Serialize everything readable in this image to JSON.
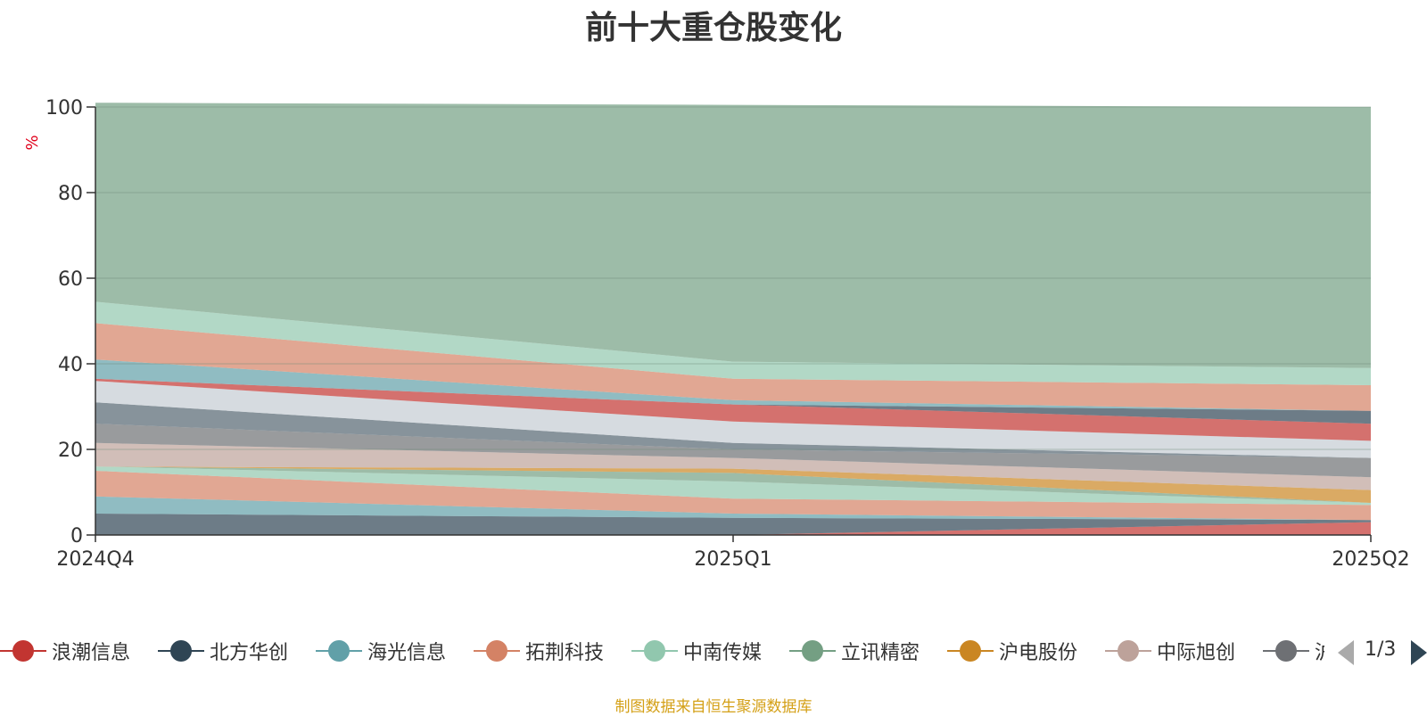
{
  "chart_data": {
    "type": "area",
    "title": "前十大重仓股变化",
    "ylabel": "%",
    "ylim": [
      0,
      100
    ],
    "yticks": [
      0,
      20,
      40,
      60,
      80,
      100
    ],
    "categories": [
      "2024Q4",
      "2025Q1",
      "2025Q2"
    ],
    "stacked": true,
    "grid": true,
    "series": [
      {
        "name": "浪潮信息",
        "color": "#c23531",
        "values": [
          0,
          0,
          3
        ]
      },
      {
        "name": "北方华创",
        "color": "#2f4554",
        "values": [
          5,
          4,
          0.5
        ]
      },
      {
        "name": "海光信息",
        "color": "#61a0a8",
        "values": [
          4,
          1,
          0
        ]
      },
      {
        "name": "拓荆科技",
        "color": "#d48265",
        "values": [
          6,
          3.5,
          3.5
        ]
      },
      {
        "name": "中南传媒",
        "color": "#91c7ae",
        "values": [
          1,
          4,
          0.5
        ]
      },
      {
        "name": "立讯精密",
        "color": "#749f83",
        "values": [
          0,
          2,
          0
        ]
      },
      {
        "name": "沪电股份",
        "color": "#ca8622",
        "values": [
          0,
          1,
          3
        ]
      },
      {
        "name": "中际旭创",
        "color": "#bda29a",
        "values": [
          5.5,
          2.5,
          3
        ]
      },
      {
        "name": "",
        "color": "#6e7074",
        "values": [
          4.5,
          2,
          4.5
        ]
      },
      {
        "name": "",
        "color": "#546570",
        "values": [
          5,
          1.5,
          0
        ]
      },
      {
        "name": "",
        "color": "#c4ccd3",
        "values": [
          5,
          5,
          4
        ]
      },
      {
        "name": "",
        "color": "#c23531",
        "values": [
          0.5,
          4,
          4
        ]
      },
      {
        "name": "",
        "color": "#2f4554",
        "values": [
          0,
          0,
          3
        ]
      },
      {
        "name": "",
        "color": "#61a0a8",
        "values": [
          4.5,
          1,
          0
        ]
      },
      {
        "name": "",
        "color": "#d48265",
        "values": [
          8.5,
          5,
          6
        ]
      },
      {
        "name": "",
        "color": "#91c7ae",
        "values": [
          5,
          4,
          4
        ]
      },
      {
        "name": "",
        "color": "#749f83",
        "values": [
          46.5,
          60,
          61
        ]
      }
    ]
  },
  "legend": {
    "page_indicator": "1/3",
    "items": [
      {
        "name": "浪潮信息",
        "color": "#c23531"
      },
      {
        "name": "北方华创",
        "color": "#2f4554"
      },
      {
        "name": "海光信息",
        "color": "#61a0a8"
      },
      {
        "name": "拓荆科技",
        "color": "#d48265"
      },
      {
        "name": "中南传媒",
        "color": "#91c7ae"
      },
      {
        "name": "立讯精密",
        "color": "#749f83"
      },
      {
        "name": "沪电股份",
        "color": "#ca8622"
      },
      {
        "name": "中际旭创",
        "color": "#bda29a"
      },
      {
        "name": "沪",
        "color": "#6e7074"
      }
    ]
  },
  "source_note": "制图数据来自恒生聚源数据库"
}
